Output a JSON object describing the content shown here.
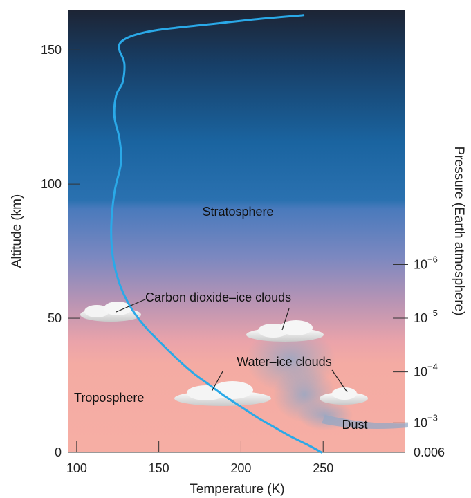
{
  "chart_data": {
    "type": "line",
    "title": "",
    "xlabel": "Temperature (K)",
    "ylabel": "Altitude (km)",
    "y2label": "Pressure (Earth atmosphere)",
    "xlim": [
      95,
      300
    ],
    "ylim": [
      0,
      165
    ],
    "x_ticks": [
      100,
      150,
      200,
      250
    ],
    "y_ticks": [
      0,
      50,
      100,
      150
    ],
    "pressure_ticks": [
      {
        "altitude": 0,
        "label": "0.006"
      },
      {
        "altitude": 11,
        "label": "10",
        "exp": "−3"
      },
      {
        "altitude": 30,
        "label": "10",
        "exp": "−4"
      },
      {
        "altitude": 50,
        "label": "10",
        "exp": "−5"
      },
      {
        "altitude": 70,
        "label": "10",
        "exp": "−6"
      }
    ],
    "series": [
      {
        "color": "#2aa9e8",
        "x": [
          249,
          240,
          230,
          220,
          210,
          200,
          190,
          180,
          170,
          160,
          150,
          140,
          132,
          126,
          122,
          121,
          123,
          127,
          126,
          123,
          124,
          128,
          129,
          126,
          127,
          135,
          150,
          180,
          210,
          238
        ],
        "y": [
          0,
          3,
          6,
          9.5,
          13,
          17,
          21,
          25.5,
          30,
          35.5,
          41.5,
          48,
          55,
          63,
          73,
          84,
          97,
          108,
          117,
          125,
          133,
          138,
          145,
          150,
          153,
          155.5,
          157.5,
          159.5,
          161.5,
          163
        ]
      }
    ],
    "annotations": [
      {
        "text": "Stratosphere"
      },
      {
        "text": "Troposphere"
      },
      {
        "text": "Carbon dioxide–ice clouds"
      },
      {
        "text": "Water–ice clouds"
      },
      {
        "text": "Dust"
      }
    ],
    "background_colors": {
      "top": "#1c2638",
      "middle": "#1a6aa8",
      "bottom": "#f4aba3"
    }
  }
}
